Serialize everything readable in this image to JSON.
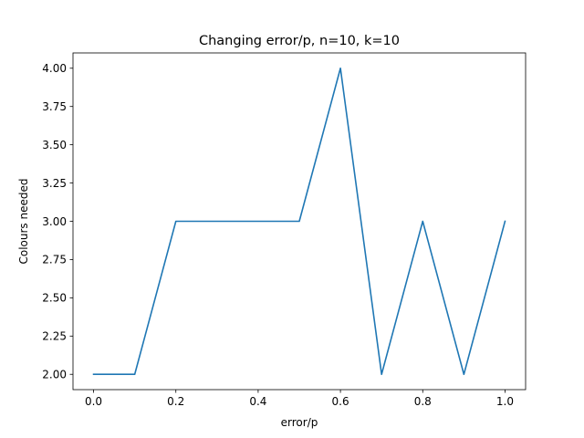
{
  "chart_data": {
    "type": "line",
    "title": "Changing error/p, n=10, k=10",
    "xlabel": "error/p",
    "ylabel": "Colours needed",
    "xlim": [
      -0.05,
      1.05
    ],
    "ylim": [
      1.9,
      4.1
    ],
    "x_ticks": [
      "0.0",
      "0.2",
      "0.4",
      "0.6",
      "0.8",
      "1.0"
    ],
    "y_ticks": [
      "2.00",
      "2.25",
      "2.50",
      "2.75",
      "3.00",
      "3.25",
      "3.50",
      "3.75",
      "4.00"
    ],
    "grid": false,
    "legend": "none",
    "series": [
      {
        "color": "#1f77b4",
        "x": [
          0.0,
          0.1,
          0.2,
          0.3,
          0.4,
          0.5,
          0.6,
          0.7,
          0.8,
          0.9,
          1.0
        ],
        "y": [
          2,
          2,
          3,
          3,
          3,
          3,
          4,
          2,
          3,
          2,
          3
        ]
      }
    ]
  }
}
